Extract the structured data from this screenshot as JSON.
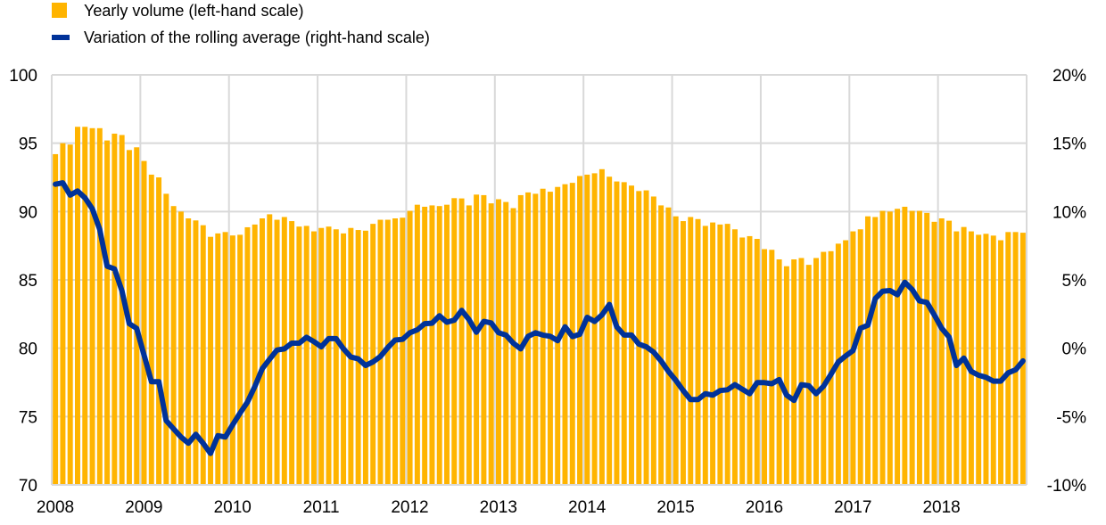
{
  "chart_data": {
    "type": "bar+line",
    "title": "",
    "legend": [
      {
        "label": "Yearly volume (left-hand scale)",
        "kind": "bar",
        "color": "#ffb400"
      },
      {
        "label": "Variation of the rolling average (right-hand scale)",
        "kind": "line",
        "color": "#003299"
      }
    ],
    "legend_position": "top-left",
    "x_tick_labels": [
      "2008",
      "2009",
      "2010",
      "2011",
      "2012",
      "2013",
      "2014",
      "2015",
      "2016",
      "2017",
      "2018"
    ],
    "frequency": "monthly",
    "start": "2008-01",
    "left_axis": {
      "ylim": [
        70,
        100
      ],
      "ticks": [
        70,
        75,
        80,
        85,
        90,
        95,
        100
      ],
      "tick_labels": [
        "70",
        "75",
        "80",
        "85",
        "90",
        "95",
        "100"
      ]
    },
    "right_axis": {
      "ylim": [
        -10,
        20
      ],
      "ticks": [
        -10,
        -5,
        0,
        5,
        10,
        15,
        20
      ],
      "tick_labels": [
        "-10%",
        "-5%",
        "0%",
        "5%",
        "10%",
        "15%",
        "20%"
      ]
    },
    "grid": true,
    "series": [
      {
        "name": "Yearly volume (left-hand scale)",
        "type": "bar",
        "axis": "left",
        "values": [
          94.2,
          95.0,
          94.9,
          96.2,
          96.2,
          96.1,
          96.1,
          95.2,
          95.7,
          95.6,
          94.5,
          94.7,
          93.7,
          92.7,
          92.5,
          91.3,
          90.4,
          90.0,
          89.5,
          89.35,
          89.0,
          88.15,
          88.4,
          88.5,
          88.25,
          88.3,
          88.85,
          89.05,
          89.5,
          89.8,
          89.4,
          89.6,
          89.3,
          88.9,
          88.95,
          88.55,
          88.8,
          88.9,
          88.7,
          88.4,
          88.8,
          88.65,
          88.6,
          89.1,
          89.4,
          89.4,
          89.5,
          89.55,
          90.05,
          90.5,
          90.35,
          90.45,
          90.4,
          90.5,
          90.98,
          90.96,
          90.45,
          91.24,
          91.2,
          90.6,
          90.9,
          90.7,
          90.25,
          91.2,
          91.4,
          91.3,
          91.67,
          91.45,
          91.8,
          92.0,
          92.1,
          92.6,
          92.7,
          92.8,
          93.1,
          92.55,
          92.2,
          92.15,
          91.9,
          91.5,
          91.55,
          91.1,
          90.45,
          90.3,
          89.65,
          89.3,
          89.6,
          89.45,
          88.95,
          89.2,
          89.05,
          89.1,
          88.7,
          88.1,
          88.2,
          88.0,
          87.25,
          87.2,
          86.5,
          86.0,
          86.5,
          86.6,
          86.1,
          86.6,
          87.05,
          87.1,
          87.65,
          87.9,
          88.55,
          88.7,
          89.65,
          89.6,
          90.05,
          90.0,
          90.2,
          90.35,
          90.05,
          90.05,
          89.9,
          89.25,
          89.5,
          89.33,
          88.55,
          88.87,
          88.55,
          88.3,
          88.37,
          88.24,
          87.9,
          88.5,
          88.5,
          88.45
        ]
      },
      {
        "name": "Variation of the rolling average (right-hand scale)",
        "type": "line",
        "axis": "right",
        "values": [
          12.0,
          12.1,
          11.2,
          11.5,
          11.0,
          10.2,
          8.7,
          6.0,
          5.8,
          4.2,
          1.8,
          1.45,
          -0.5,
          -2.45,
          -2.45,
          -5.3,
          -5.9,
          -6.5,
          -6.95,
          -6.3,
          -6.95,
          -7.7,
          -6.4,
          -6.5,
          -5.6,
          -4.75,
          -3.95,
          -2.8,
          -1.5,
          -0.8,
          -0.13,
          -0.05,
          0.37,
          0.37,
          0.8,
          0.48,
          0.1,
          0.7,
          0.7,
          -0.05,
          -0.65,
          -0.78,
          -1.26,
          -1.0,
          -0.6,
          0.05,
          0.6,
          0.65,
          1.13,
          1.35,
          1.8,
          1.83,
          2.37,
          1.9,
          2.05,
          2.77,
          2.1,
          1.17,
          1.96,
          1.85,
          1.13,
          0.96,
          0.37,
          -0.05,
          0.87,
          1.13,
          0.96,
          0.87,
          0.55,
          1.57,
          0.85,
          1.02,
          2.26,
          1.96,
          2.44,
          3.2,
          1.57,
          0.96,
          0.96,
          0.3,
          0.1,
          -0.28,
          -0.93,
          -1.7,
          -2.35,
          -3.1,
          -3.76,
          -3.76,
          -3.33,
          -3.43,
          -3.1,
          -3.04,
          -2.67,
          -3.0,
          -3.33,
          -2.52,
          -2.52,
          -2.6,
          -2.3,
          -3.43,
          -3.82,
          -2.67,
          -2.74,
          -3.33,
          -2.78,
          -1.91,
          -1.0,
          -0.56,
          -0.17,
          1.46,
          1.68,
          3.63,
          4.17,
          4.22,
          3.91,
          4.83,
          4.29,
          3.46,
          3.35,
          2.44,
          1.46,
          0.81,
          -1.26,
          -0.72,
          -1.7,
          -1.98,
          -2.13,
          -2.41,
          -2.41,
          -1.8,
          -1.58,
          -0.93
        ]
      }
    ]
  }
}
